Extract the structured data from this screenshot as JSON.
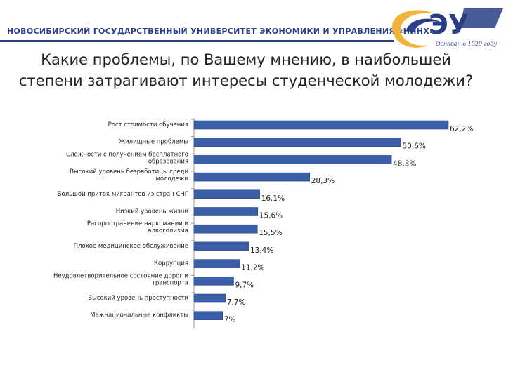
{
  "header": {
    "university_name": "НОВОСИБИРСКИЙ ГОСУДАРСТВЕННЫЙ УНИВЕРСИТЕТ ЭКОНОМИКИ И УПРАВЛЕНИЯ «НИНХ»",
    "logo_caption": "Основан в 1929 году",
    "logo_text": "ЭУ"
  },
  "colors": {
    "bar": "#3a5ea8",
    "bar_edge": "#2a4a8a",
    "brand": "#2a3f86",
    "accent": "#f0b43c"
  },
  "chart_data": {
    "type": "bar",
    "orientation": "horizontal",
    "title": "Какие проблемы, по Вашему мнению, в наибольшей степени затрагивают интересы студенческой молодежи?",
    "unit": "%",
    "categories": [
      "Рост стоимости обучения",
      "Жилищные проблемы",
      "Сложности с получением бесплатного образования",
      "Высокий уровень безработицы среди молодежи",
      "Большой приток мигрантов из стран СНГ",
      "Низкий уровень жизни",
      "Распространение наркомании и алкоголизма",
      "Плохое медицинское обслуживание",
      "Коррупция",
      "Неудовлетворительное состояние дорог и транспорта",
      "Высокий уровень преступности",
      "Межнациональные конфликты"
    ],
    "category_lines": [
      [
        "Рост стоимости обучения"
      ],
      [
        "Жилищные проблемы"
      ],
      [
        "Сложности с получением бесплатного",
        "образования"
      ],
      [
        "Высокий уровень безработицы среди",
        "молодежи"
      ],
      [
        "Большой приток мигрантов из стран СНГ"
      ],
      [
        "Низкий уровень жизни"
      ],
      [
        "Распространение наркомании и",
        "алкоголизма"
      ],
      [
        "Плохое медицинское обслуживание"
      ],
      [
        "Коррупция"
      ],
      [
        "Неудовлетворительное состояние дорог и",
        "транспорта"
      ],
      [
        "Высокий уровень преступности"
      ],
      [
        "Межнациональные конфликты"
      ]
    ],
    "values": [
      62.2,
      50.6,
      48.3,
      28.3,
      16.1,
      15.6,
      15.5,
      13.4,
      11.2,
      9.7,
      7.7,
      7
    ],
    "value_labels": [
      "62,2%",
      "50,6%",
      "48,3%",
      "28,3%",
      "16,1%",
      "15,6%",
      "15,5%",
      "13,4%",
      "11,2%",
      "9,7%",
      "7,7%",
      "7%"
    ],
    "xlim": [
      0,
      62.2
    ],
    "grid": false,
    "legend": "none"
  }
}
